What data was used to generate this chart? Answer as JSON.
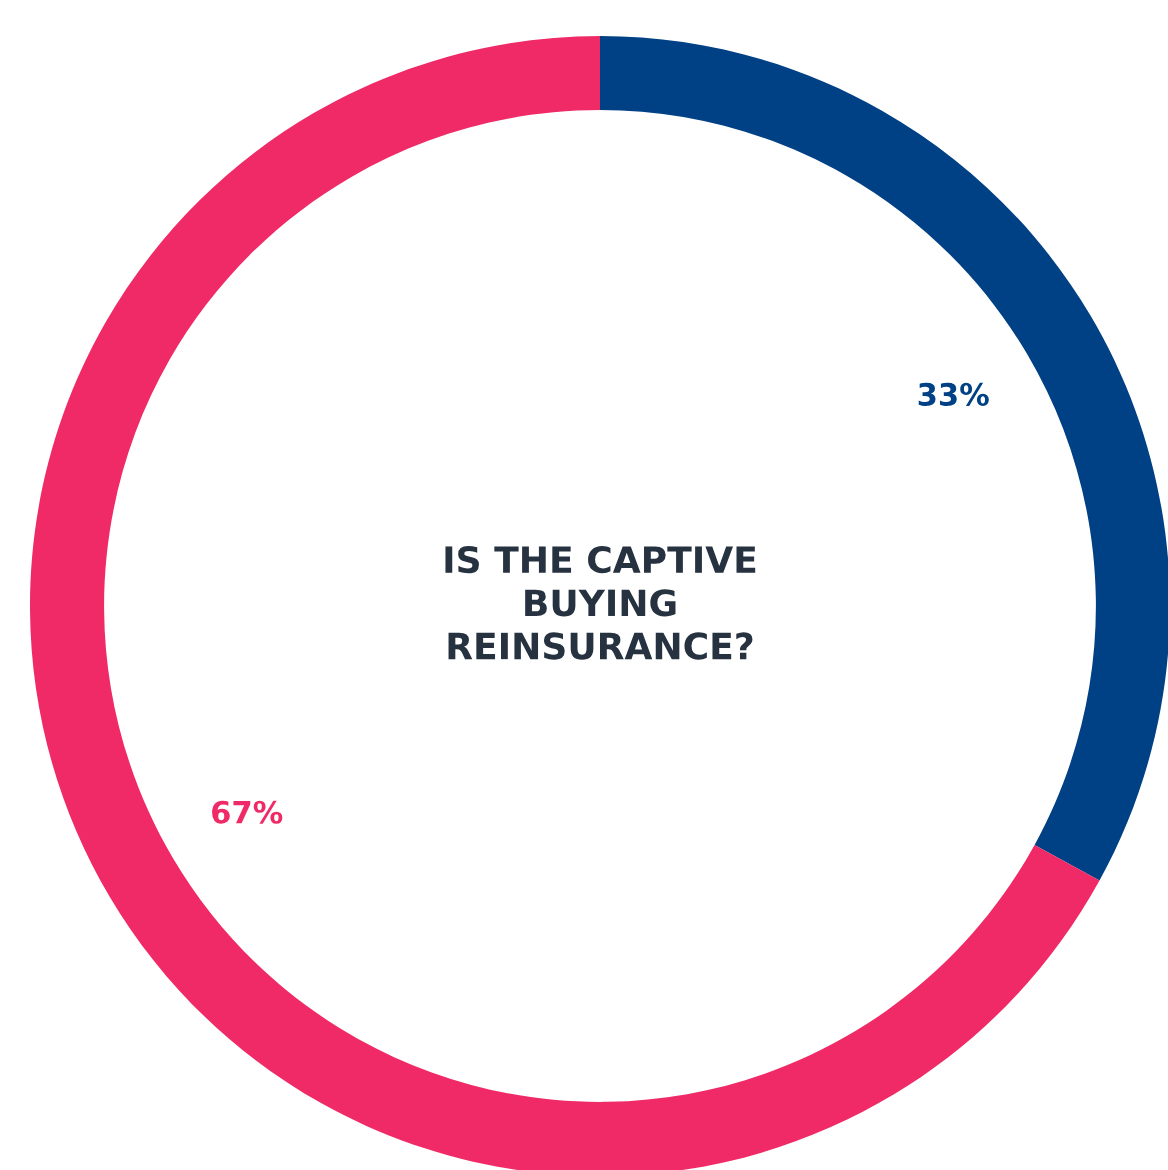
{
  "chart_data": {
    "type": "donut",
    "title": "IS THE CAPTIVE\nBUYING\nREINSURANCE?",
    "categories": [
      null,
      null
    ],
    "values": [
      33,
      67
    ],
    "colors": [
      "#004085",
      "#ef2a67"
    ],
    "value_labels": [
      "33%",
      "67%"
    ]
  }
}
